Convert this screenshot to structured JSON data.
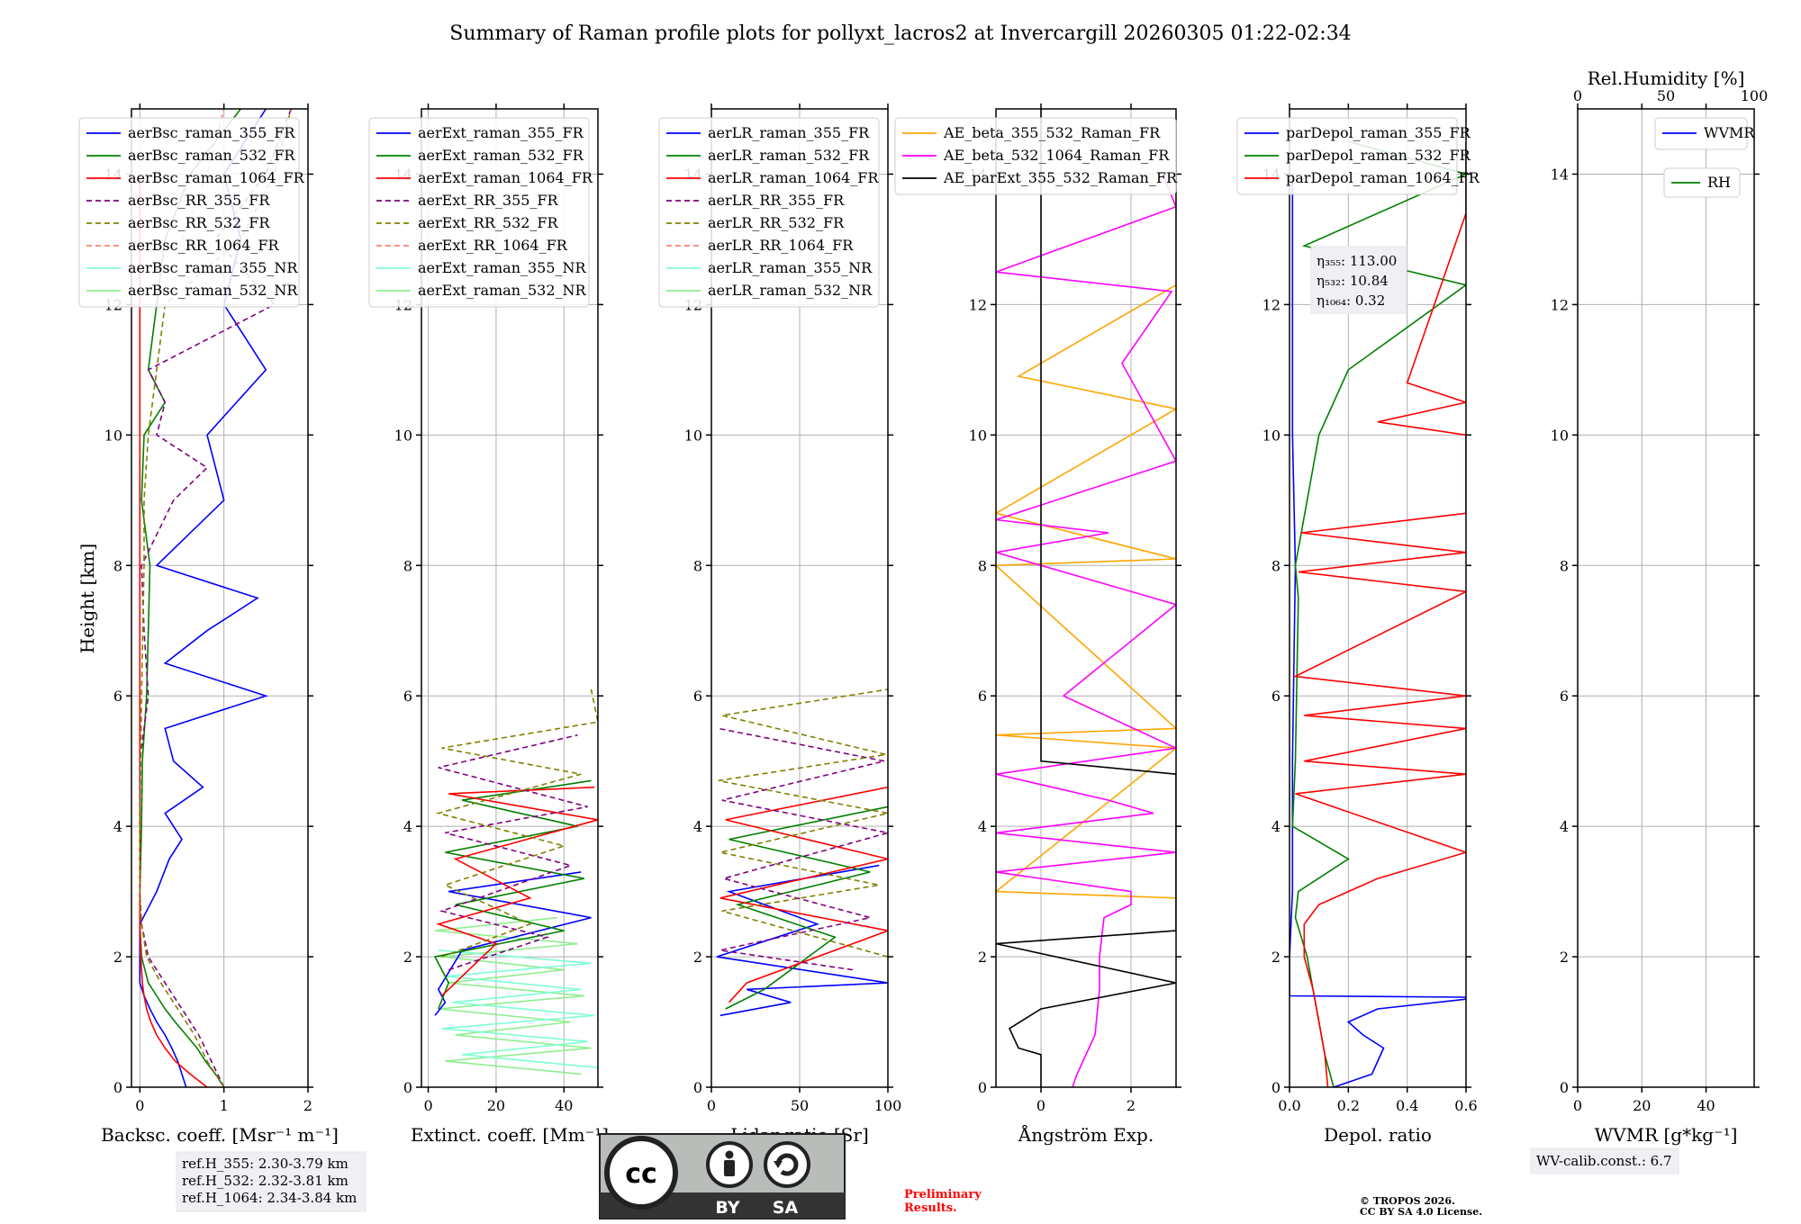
{
  "figure": {
    "title": "Summary of Raman profile plots for pollyxt_lacros2 at Invercargill 20260305 01:22-02:34",
    "ylabel": "Height [km]",
    "ref_heights": [
      "ref.H_355: 2.30-3.79 km",
      "ref.H_532: 2.32-3.81 km",
      "ref.H_1064: 2.34-3.84 km"
    ],
    "eta": [
      "η₃₅₅: 113.00",
      "η₅₃₂: 10.84",
      "η₁₀₆₄: 0.32"
    ],
    "wv_calib": "WV-calib.const.: 6.7",
    "preliminary": [
      "Preliminary",
      "Results."
    ],
    "copyright": [
      "© TROPOS 2026.",
      "CC BY SA 4.0 License."
    ],
    "license_badge": {
      "cc": "cc",
      "by": "BY",
      "sa": "SA"
    },
    "colors": {
      "blue": "#0000ff",
      "green": "#008000",
      "red": "#ff0000",
      "purple": "#800080",
      "olive": "#808000",
      "salmon": "#fa8072",
      "cyan": "#7fffd4",
      "lightgreen": "#90ee90",
      "orange": "#ffa500",
      "magenta": "#ff00ff",
      "black": "#000000",
      "prelim": "#ff0000"
    }
  },
  "chart_data": [
    {
      "id": "bsc",
      "type": "line",
      "xlabel": "Backsc. coeff. [Msr⁻¹ m⁻¹]",
      "xlim": [
        -0.1,
        2
      ],
      "xticks": [
        0,
        1,
        2
      ],
      "xticklabels": [
        "0",
        "1",
        "2"
      ],
      "ylim": [
        0,
        15
      ],
      "yticks": [
        0,
        2,
        4,
        6,
        8,
        10,
        12,
        14
      ],
      "legend": [
        "aerBsc_raman_355_FR",
        "aerBsc_raman_532_FR",
        "aerBsc_raman_1064_FR",
        "aerBsc_RR_355_FR",
        "aerBsc_RR_532_FR",
        "aerBsc_RR_1064_FR",
        "aerBsc_raman_355_NR",
        "aerBsc_raman_532_NR"
      ],
      "series": [
        {
          "name": "aerBsc_raman_355_FR",
          "color": "blue",
          "y": [
            0,
            0.2,
            0.4,
            0.6,
            0.8,
            1.0,
            1.2,
            1.4,
            1.6,
            2.0,
            2.5,
            3.0,
            3.5,
            3.8,
            4.2,
            4.6,
            5.0,
            5.5,
            6.0,
            6.5,
            7.0,
            7.5,
            8.0,
            9.0,
            10.0,
            11.0,
            12.0,
            13.0,
            14.0,
            15.0
          ],
          "x": [
            0.55,
            0.5,
            0.45,
            0.38,
            0.3,
            0.2,
            0.12,
            0.05,
            0,
            0,
            0,
            0.2,
            0.35,
            0.5,
            0.3,
            0.75,
            0.4,
            0.3,
            1.5,
            0.3,
            0.8,
            1.4,
            0.2,
            1.0,
            0.8,
            1.5,
            1.0,
            1.2,
            1.0,
            1.5
          ]
        },
        {
          "name": "aerBsc_raman_532_FR",
          "color": "green",
          "y": [
            0,
            0.2,
            0.4,
            0.6,
            0.8,
            1.0,
            1.2,
            1.4,
            1.6,
            2.0,
            2.5,
            3.0,
            4.0,
            5.0,
            6.0,
            7.0,
            8.0,
            9.0,
            10.0,
            10.5,
            11.0,
            12.0,
            13.0,
            14.0,
            15.0
          ],
          "x": [
            1.0,
            0.9,
            0.78,
            0.68,
            0.55,
            0.42,
            0.3,
            0.2,
            0.1,
            0.02,
            0,
            0,
            0.02,
            0.03,
            0.08,
            0.1,
            0.12,
            0.02,
            0.05,
            0.3,
            0.1,
            0.2,
            0.3,
            0.6,
            1.2
          ]
        },
        {
          "name": "aerBsc_raman_1064_FR",
          "color": "red",
          "y": [
            0,
            0.2,
            0.4,
            0.6,
            0.8,
            1.0,
            1.2,
            1.4,
            1.6,
            2.0,
            2.5,
            3.0,
            4.0,
            6.0,
            8.0,
            10.0,
            11.0,
            12.0,
            13.0,
            14.0
          ],
          "x": [
            0.8,
            0.6,
            0.42,
            0.3,
            0.2,
            0.13,
            0.08,
            0.05,
            0.03,
            0.01,
            0,
            0,
            0,
            0,
            0,
            0,
            0,
            0,
            0,
            0
          ]
        },
        {
          "name": "aerBsc_RR_355_FR",
          "color": "purple",
          "y": [
            0,
            0.4,
            0.8,
            1.2,
            1.6,
            2.0,
            2.5,
            3.0,
            4.0,
            5.0,
            6.0,
            7.0,
            8.0,
            9.0,
            9.5,
            10.0,
            10.5,
            11.0,
            12.0,
            13.0,
            14.0,
            15.0
          ],
          "x": [
            1.0,
            0.85,
            0.7,
            0.5,
            0.3,
            0.1,
            0.02,
            0,
            0,
            0,
            0.1,
            0.05,
            0.02,
            0.4,
            0.8,
            0.2,
            0.3,
            0.1,
            1.6,
            0.9,
            1.5,
            1.8
          ]
        },
        {
          "name": "aerBsc_RR_532_FR",
          "color": "olive",
          "y": [
            0,
            0.4,
            0.8,
            1.2,
            1.6,
            2.0,
            2.5,
            3.0,
            4.0,
            6.0,
            8.0,
            9.0,
            10.0,
            11.0,
            12.0,
            13.0,
            14.0,
            15.0
          ],
          "x": [
            1.0,
            0.8,
            0.65,
            0.45,
            0.25,
            0.08,
            0.02,
            0,
            0,
            0.02,
            0.05,
            0.05,
            0.1,
            0.2,
            0.3,
            1.2,
            1.6,
            1.8
          ]
        },
        {
          "name": "aerBsc_RR_1064_FR",
          "color": "salmon",
          "y": [
            13.0,
            14.0,
            15.0
          ],
          "x": [
            0.5,
            0.8,
            1.0
          ]
        }
      ]
    },
    {
      "id": "ext",
      "type": "line",
      "xlabel": "Extinct. coeff. [Mm⁻¹]",
      "xlim": [
        -2,
        50
      ],
      "xticks": [
        0,
        20,
        40
      ],
      "xticklabels": [
        "0",
        "20",
        "40"
      ],
      "ylim": [
        0,
        15
      ],
      "yticks": [
        0,
        2,
        4,
        6,
        8,
        10,
        12,
        14
      ],
      "legend": [
        "aerExt_raman_355_FR",
        "aerExt_raman_532_FR",
        "aerExt_raman_1064_FR",
        "aerExt_RR_355_FR",
        "aerExt_RR_532_FR",
        "aerExt_RR_1064_FR",
        "aerExt_raman_355_NR",
        "aerExt_raman_532_NR"
      ],
      "series": [
        {
          "name": "aerExt_raman_532_NR",
          "color": "lightgreen",
          "y": [
            0.2,
            0.4,
            0.6,
            0.8,
            1.0,
            1.2,
            1.4,
            1.6,
            1.8,
            2.0,
            2.2,
            2.4,
            2.6
          ],
          "x": [
            45,
            5,
            48,
            8,
            42,
            3,
            46,
            6,
            40,
            4,
            44,
            2,
            38
          ]
        },
        {
          "name": "aerExt_raman_355_NR",
          "color": "cyan",
          "y": [
            0.3,
            0.5,
            0.7,
            0.9,
            1.1,
            1.3,
            1.5,
            1.7,
            1.9,
            2.1
          ],
          "x": [
            50,
            10,
            47,
            4,
            49,
            7,
            45,
            5,
            48,
            3
          ]
        },
        {
          "name": "aerExt_raman_355_FR",
          "color": "blue",
          "y": [
            1.1,
            1.3,
            1.5,
            2.1,
            2.6,
            3.0,
            3.3
          ],
          "x": [
            2,
            5,
            3,
            10,
            48,
            6,
            45
          ]
        },
        {
          "name": "aerExt_raman_532_FR",
          "color": "green",
          "y": [
            1.2,
            1.6,
            2.0,
            2.4,
            2.8,
            3.2,
            3.6,
            4.0,
            4.4,
            4.7
          ],
          "x": [
            3,
            6,
            2,
            40,
            8,
            46,
            5,
            44,
            10,
            48
          ]
        },
        {
          "name": "aerExt_raman_1064_FR",
          "color": "red",
          "y": [
            1.4,
            2.2,
            2.5,
            2.9,
            3.5,
            4.1,
            4.5,
            4.6
          ],
          "x": [
            4,
            20,
            3,
            30,
            8,
            50,
            6,
            49
          ]
        },
        {
          "name": "aerExt_RR_355_FR",
          "color": "purple",
          "y": [
            1.8,
            2.3,
            2.7,
            3.4,
            3.9,
            4.3,
            4.9,
            5.4
          ],
          "x": [
            6,
            35,
            4,
            42,
            5,
            47,
            3,
            44
          ]
        },
        {
          "name": "aerExt_RR_532_FR",
          "color": "olive",
          "y": [
            2.0,
            2.5,
            3.1,
            3.7,
            4.2,
            4.8,
            5.2,
            5.6,
            6.1
          ],
          "x": [
            4,
            30,
            5,
            40,
            3,
            45,
            4,
            50,
            48
          ]
        }
      ]
    },
    {
      "id": "lr",
      "type": "line",
      "xlabel": "Lidar ratio [Sr]",
      "xlim": [
        0,
        100
      ],
      "xticks": [
        0,
        50,
        100
      ],
      "xticklabels": [
        "0",
        "50",
        "100"
      ],
      "ylim": [
        0,
        15
      ],
      "yticks": [
        0,
        2,
        4,
        6,
        8,
        10,
        12,
        14
      ],
      "legend": [
        "aerLR_raman_355_FR",
        "aerLR_raman_532_FR",
        "aerLR_raman_1064_FR",
        "aerLR_RR_355_FR",
        "aerLR_RR_532_FR",
        "aerLR_RR_1064_FR",
        "aerLR_raman_355_NR",
        "aerLR_raman_532_NR"
      ],
      "series": [
        {
          "name": "aerLR_raman_355_FR",
          "color": "blue",
          "y": [
            1.1,
            1.3,
            1.5,
            1.6,
            2.0,
            2.5,
            3.0,
            3.4
          ],
          "x": [
            5,
            45,
            20,
            100,
            3,
            60,
            10,
            95
          ]
        },
        {
          "name": "aerLR_raman_532_FR",
          "color": "green",
          "y": [
            1.2,
            1.5,
            2.3,
            2.8,
            3.3,
            3.8,
            4.3
          ],
          "x": [
            8,
            30,
            70,
            15,
            90,
            10,
            100
          ]
        },
        {
          "name": "aerLR_raman_1064_FR",
          "color": "red",
          "y": [
            1.3,
            1.6,
            2.4,
            2.9,
            3.5,
            4.1,
            4.6
          ],
          "x": [
            10,
            20,
            100,
            5,
            100,
            8,
            100
          ]
        },
        {
          "name": "aerLR_RR_355_FR",
          "color": "purple",
          "y": [
            1.8,
            2.1,
            2.6,
            3.2,
            3.9,
            4.4,
            5.0,
            5.5
          ],
          "x": [
            80,
            5,
            90,
            7,
            100,
            6,
            98,
            4
          ]
        },
        {
          "name": "aerLR_RR_532_FR",
          "color": "olive",
          "y": [
            2.0,
            2.7,
            3.1,
            3.6,
            4.2,
            4.7,
            5.1,
            5.7,
            6.1
          ],
          "x": [
            100,
            6,
            95,
            5,
            100,
            4,
            99,
            6,
            100
          ]
        }
      ]
    },
    {
      "id": "ae",
      "type": "line",
      "xlabel": "Ångström Exp.",
      "xlim": [
        -1,
        3
      ],
      "xticks": [
        0,
        2
      ],
      "xticklabels": [
        "0",
        "2"
      ],
      "ylim": [
        0,
        15
      ],
      "yticks": [
        0,
        2,
        4,
        6,
        8,
        10,
        12,
        14
      ],
      "legend": [
        "AE_beta_355_532_Raman_FR",
        "AE_beta_532_1064_Raman_FR",
        "AE_parExt_355_532_Raman_FR"
      ],
      "series": [
        {
          "name": "AE_beta_355_532_Raman_FR",
          "color": "orange",
          "y": [
            2.9,
            3.0,
            5.2,
            5.4,
            5.5,
            8.0,
            8.1,
            8.8,
            10.4,
            10.9,
            12.3,
            14.9
          ],
          "x": [
            3,
            -1,
            3,
            -1,
            3,
            -1,
            3,
            -1,
            3,
            -0.5,
            3,
            3
          ]
        },
        {
          "name": "AE_beta_532_1064_Raman_FR",
          "color": "magenta",
          "y": [
            0,
            0.2,
            0.8,
            1.5,
            2.0,
            2.6,
            2.8,
            3.0,
            3.3,
            3.6,
            3.9,
            4.2,
            4.4,
            4.8,
            5.2,
            6.0,
            7.4,
            8.2,
            8.5,
            8.7,
            9.6,
            11.1,
            12.2,
            12.5,
            13.5,
            14.0
          ],
          "x": [
            0.7,
            0.8,
            1.2,
            1.3,
            1.3,
            1.4,
            2.0,
            2.0,
            -1,
            3,
            -1,
            2.5,
            1.5,
            -1,
            3,
            0.5,
            3,
            -1,
            1.5,
            -1,
            3,
            1.8,
            2.9,
            -1,
            3,
            2.7
          ]
        },
        {
          "name": "AE_parExt_355_532_Raman_FR",
          "color": "black",
          "y": [
            0,
            0.5,
            0.6,
            0.9,
            1.2,
            1.6,
            2.2,
            2.4,
            2.5,
            4.8,
            5.0,
            15.0
          ],
          "x": [
            0,
            0,
            -0.5,
            -0.7,
            0,
            3,
            -1,
            3,
            3,
            3,
            0,
            0
          ]
        }
      ]
    },
    {
      "id": "depol",
      "type": "line",
      "xlabel": "Depol. ratio",
      "xlim": [
        0,
        0.6
      ],
      "xticks": [
        0,
        0.2,
        0.4,
        0.6
      ],
      "xticklabels": [
        "0.0",
        "0.2",
        "0.4",
        "0.6"
      ],
      "ylim": [
        0,
        15
      ],
      "yticks": [
        0,
        2,
        4,
        6,
        8,
        10,
        12,
        14
      ],
      "legend": [
        "parDepol_raman_355_FR",
        "parDepol_raman_532_FR",
        "parDepol_raman_1064_FR"
      ],
      "series": [
        {
          "name": "parDepol_raman_355_FR",
          "color": "blue",
          "y": [
            0,
            0.2,
            0.4,
            0.6,
            0.8,
            1.0,
            1.2,
            1.35,
            1.38,
            1.4,
            2.0,
            3.0,
            5.0,
            8.0,
            10.0,
            12.0,
            14.0
          ],
          "x": [
            0.15,
            0.28,
            0.3,
            0.32,
            0.25,
            0.2,
            0.3,
            0.6,
            0.6,
            0,
            0,
            0.01,
            0.01,
            0.02,
            0.01,
            0.01,
            0.01
          ]
        },
        {
          "name": "parDepol_raman_532_FR",
          "color": "green",
          "y": [
            0,
            0.5,
            1.0,
            1.5,
            2.0,
            2.3,
            2.6,
            3.0,
            3.5,
            4.0,
            5.0,
            7.5,
            8.0,
            10.0,
            11.0,
            12.3,
            12.9,
            14.0,
            14.5
          ],
          "x": [
            0.15,
            0.12,
            0.1,
            0.08,
            0.06,
            0.04,
            0.02,
            0.03,
            0.2,
            0.01,
            0.02,
            0.03,
            0.02,
            0.1,
            0.2,
            0.6,
            0.05,
            0.6,
            0.2
          ]
        },
        {
          "name": "parDepol_raman_1064_FR",
          "color": "red",
          "y": [
            0,
            0.5,
            1.0,
            1.5,
            2.0,
            2.5,
            2.8,
            3.0,
            3.2,
            3.6,
            4.5,
            4.8,
            5.0,
            5.5,
            5.7,
            6.0,
            6.3,
            7.6,
            7.9,
            8.2,
            8.5,
            8.8,
            10.0,
            10.2,
            10.5,
            10.8,
            13.4,
            14.5
          ],
          "x": [
            0.13,
            0.12,
            0.1,
            0.08,
            0.05,
            0.05,
            0.1,
            0.2,
            0.3,
            0.6,
            0.02,
            0.6,
            0.05,
            0.6,
            0.05,
            0.6,
            0.02,
            0.6,
            0.03,
            0.6,
            0.04,
            0.6,
            0.6,
            0.3,
            0.6,
            0.4,
            0.6,
            0.6
          ]
        }
      ]
    },
    {
      "id": "wv",
      "type": "line",
      "xlabel": "WVMR [g*kg⁻¹]",
      "top_xlabel": "Rel.Humidity [%]",
      "top_xticklabels": [
        "0",
        "50",
        "100"
      ],
      "xlim": [
        0,
        55
      ],
      "xticks": [
        0,
        20,
        40
      ],
      "xticklabels": [
        "0",
        "20",
        "40"
      ],
      "ylim": [
        0,
        15
      ],
      "yticks": [
        0,
        2,
        4,
        6,
        8,
        10,
        12,
        14
      ],
      "legend": [
        "WVMR"
      ],
      "legend2": [
        "RH"
      ],
      "series": []
    }
  ]
}
